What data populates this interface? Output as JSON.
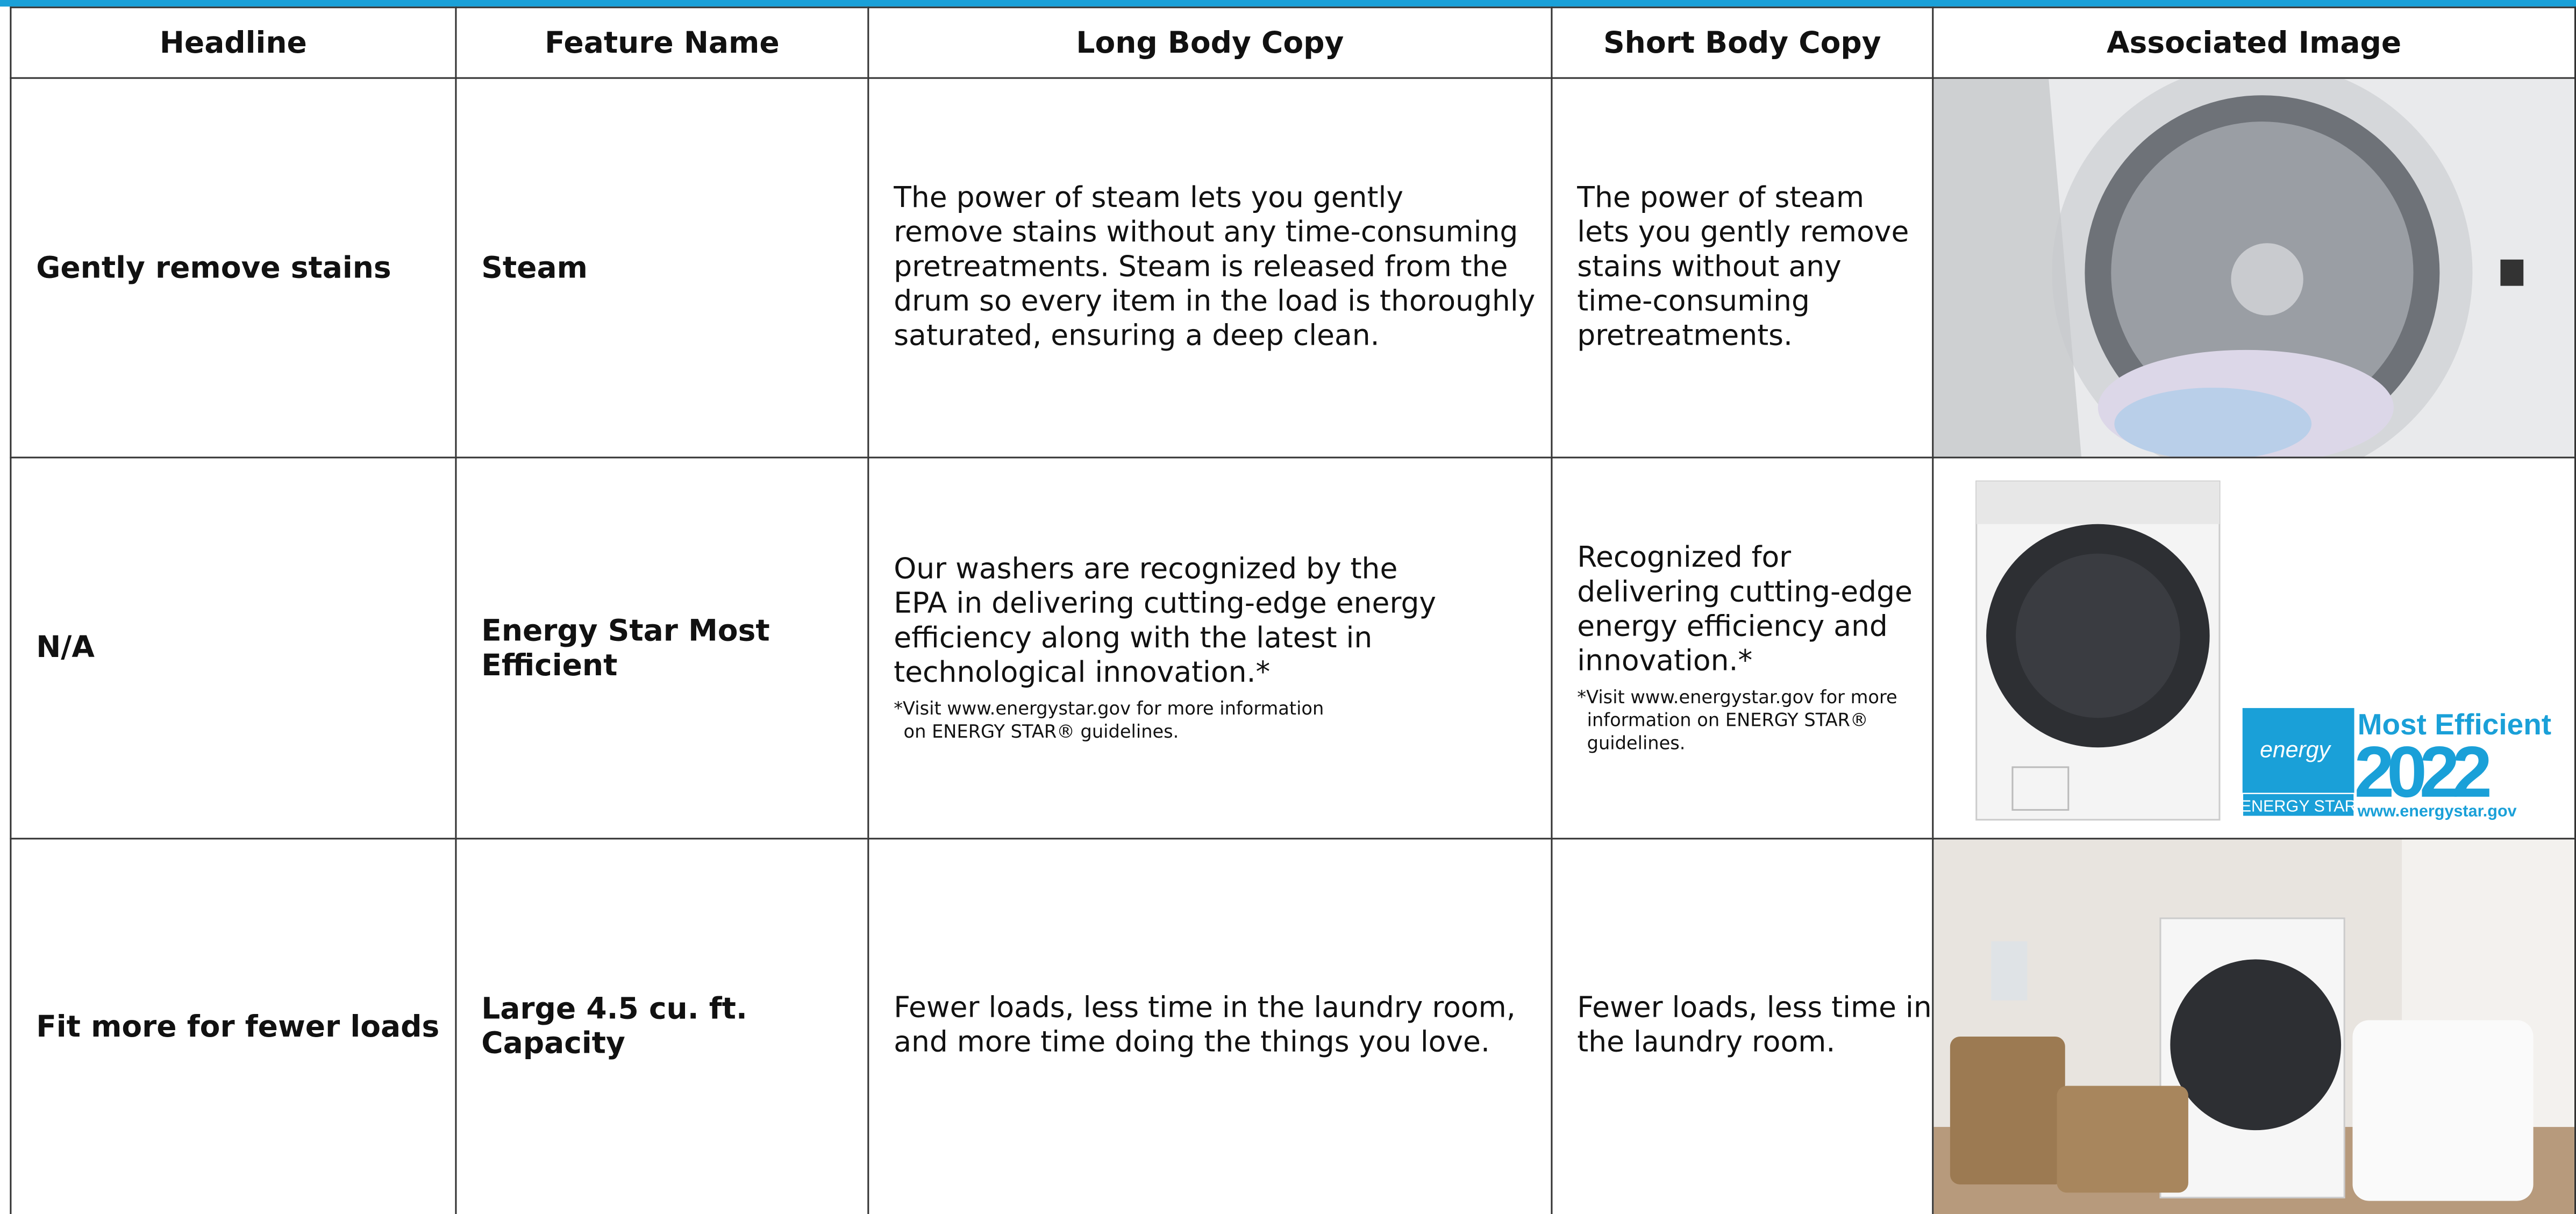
{
  "table": {
    "headers": [
      "Headline",
      "Feature Name",
      "Long Body Copy",
      "Short Body Copy",
      "Associated Image"
    ],
    "rows": [
      {
        "headline": "Gently remove stains",
        "feature": "Steam",
        "long": [
          "The power of steam lets you gently",
          "remove stains without any time-consuming",
          "pretreatments. Steam is released from the",
          "drum so every item in the load is thoroughly",
          "saturated, ensuring a deep clean."
        ],
        "short": [
          "The power of steam",
          "lets you gently remove",
          "stains without any",
          "time-consuming",
          "pretreatments."
        ]
      },
      {
        "headline": "N/A",
        "feature": "Energy Star Most Efficient",
        "long": [
          "Our washers are recognized by the",
          "EPA in delivering cutting-edge energy",
          "efficiency along with the latest in",
          "technological innovation.*"
        ],
        "long_note": [
          "*Visit www.energystar.gov for more information",
          "on ENERGY STAR® guidelines."
        ],
        "short": [
          "Recognized for",
          "delivering cutting-edge",
          "energy efficiency and",
          "innovation.*"
        ],
        "short_note": [
          "*Visit www.energystar.gov for more",
          "information on ENERGY STAR®",
          "guidelines."
        ],
        "badge": {
          "mark": "energy",
          "label": "ENERGY STAR",
          "title": "Most Efficient",
          "year": "2022",
          "url": "www.energystar.gov"
        }
      },
      {
        "headline": "Fit more for fewer loads",
        "feature": "Large 4.5 cu. ft. Capacity",
        "long": [
          "Fewer loads, less time in the laundry room,",
          "and more time doing the things you love."
        ],
        "short": [
          "Fewer loads, less time in",
          "the laundry room."
        ]
      }
    ]
  }
}
